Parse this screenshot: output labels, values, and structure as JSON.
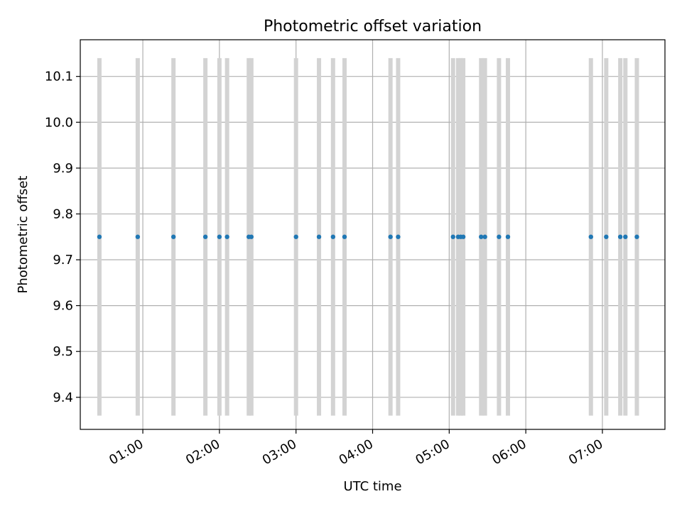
{
  "chart_data": {
    "type": "scatter",
    "title": "Photometric offset variation",
    "xlabel": "UTC time",
    "ylabel": "Photometric offset",
    "x_unit": "UTC time of day (HH:MM)",
    "xlim": [
      "00:11",
      "07:49"
    ],
    "ylim": [
      9.33,
      10.18
    ],
    "grid": true,
    "legend": "none",
    "colors": {
      "points": "#1f77b4",
      "errorbars": "#d3d3d3",
      "grid": "#b0b0b0"
    },
    "x_ticks": [
      "01:00",
      "02:00",
      "03:00",
      "04:00",
      "05:00",
      "06:00",
      "07:00"
    ],
    "y_ticks": [
      "9.4",
      "9.5",
      "9.6",
      "9.7",
      "9.8",
      "9.9",
      "10.0",
      "10.1"
    ],
    "errorbar_range": [
      9.36,
      10.14
    ],
    "points": [
      {
        "x": "00:26",
        "y": 9.75
      },
      {
        "x": "00:56",
        "y": 9.75
      },
      {
        "x": "01:24",
        "y": 9.75
      },
      {
        "x": "01:49",
        "y": 9.75
      },
      {
        "x": "02:00",
        "y": 9.75
      },
      {
        "x": "02:06",
        "y": 9.75
      },
      {
        "x": "02:23",
        "y": 9.75
      },
      {
        "x": "02:25",
        "y": 9.75
      },
      {
        "x": "03:00",
        "y": 9.75
      },
      {
        "x": "03:18",
        "y": 9.75
      },
      {
        "x": "03:29",
        "y": 9.75
      },
      {
        "x": "03:38",
        "y": 9.75
      },
      {
        "x": "04:14",
        "y": 9.75
      },
      {
        "x": "04:20",
        "y": 9.75
      },
      {
        "x": "05:03",
        "y": 9.75
      },
      {
        "x": "05:07",
        "y": 9.75
      },
      {
        "x": "05:09",
        "y": 9.75
      },
      {
        "x": "05:11",
        "y": 9.75
      },
      {
        "x": "05:25",
        "y": 9.75
      },
      {
        "x": "05:28",
        "y": 9.75
      },
      {
        "x": "05:39",
        "y": 9.75
      },
      {
        "x": "05:46",
        "y": 9.75
      },
      {
        "x": "06:51",
        "y": 9.75
      },
      {
        "x": "07:03",
        "y": 9.75
      },
      {
        "x": "07:14",
        "y": 9.75
      },
      {
        "x": "07:18",
        "y": 9.75
      },
      {
        "x": "07:27",
        "y": 9.75
      }
    ]
  }
}
